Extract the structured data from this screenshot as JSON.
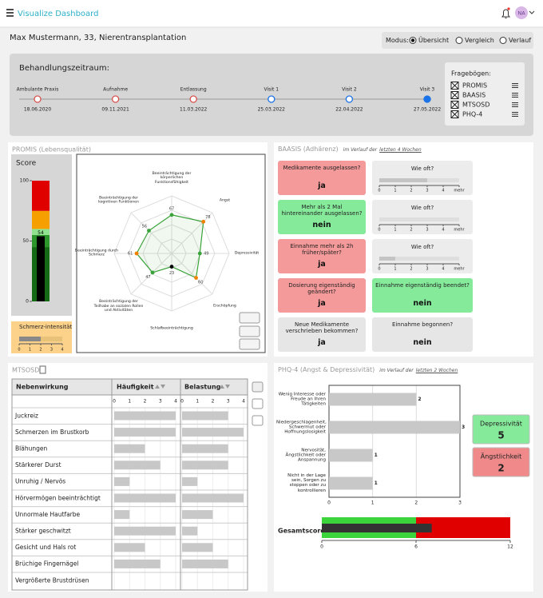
{
  "header": {
    "title": "Visualize Dashboard",
    "avatar": "NA"
  },
  "patient": "Max Mustermann, 33, Nierentransplantation",
  "mode": {
    "label": "Modus:",
    "options": [
      "Übersicht",
      "Vergleich",
      "Verlauf"
    ],
    "selected": 0
  },
  "timeline": {
    "title": "Behandlungszeitraum:",
    "current": 5,
    "events": [
      {
        "label": "Ambulante Praxis",
        "date": "18.06.2020",
        "color": "#d9534f"
      },
      {
        "label": "Aufnahme",
        "date": "09.11.2021",
        "color": "#d9534f"
      },
      {
        "label": "Entlassung",
        "date": "11.03.2022",
        "color": "#d9534f"
      },
      {
        "label": "Visit 1",
        "date": "25.03.2022",
        "color": "#1a73e8"
      },
      {
        "label": "Visit 2",
        "date": "22.04.2022",
        "color": "#1a73e8"
      },
      {
        "label": "Visit 3",
        "date": "27.05.2022",
        "color": "#1a73e8"
      }
    ]
  },
  "questionnaires": {
    "title": "Fragebögen:",
    "items": [
      "PROMIS",
      "BAASIS",
      "MTSOSD",
      "PHQ-4"
    ]
  },
  "promis": {
    "title": "PROMIS (Lebensqualität)",
    "score": {
      "label": "Score",
      "value": 54,
      "ylim": [
        0,
        100
      ],
      "yticks": [
        0,
        50,
        100
      ],
      "bands": [
        {
          "from": 0,
          "to": 45,
          "color": "#156b15"
        },
        {
          "from": 45,
          "to": 55,
          "color": "#2c962c"
        },
        {
          "from": 55,
          "to": 60,
          "color": "#8fe38f"
        },
        {
          "from": 60,
          "to": 75,
          "color": "#f5a000"
        },
        {
          "from": 75,
          "to": 100,
          "color": "#e00000"
        }
      ]
    },
    "pain": {
      "label": "Schmerz-intensität",
      "value": 2,
      "xlim": [
        0,
        4
      ],
      "xticks": [
        0,
        1,
        2,
        3,
        4
      ]
    },
    "radar": {
      "type": "radar",
      "rlim": [
        0,
        100
      ],
      "color": "#3aa23a",
      "axes": [
        {
          "label": "Beeinträchtigung der körperlichen Funktionsfähigkeit",
          "value": 67,
          "color": "#3aa23a"
        },
        {
          "label": "Angst",
          "value": 78,
          "color": "#f08000"
        },
        {
          "label": "Depressivität",
          "value": 49,
          "color": "#3aa23a"
        },
        {
          "label": "Erschöpfung",
          "value": 60,
          "color": "#f08000"
        },
        {
          "label": "Schlafbeeinträchtigung",
          "value": 23,
          "color": "#000000"
        },
        {
          "label": "Beeinträchtigung der Teilhabe an sozialen Rollen und Aktivitäten",
          "value": 47,
          "color": "#3aa23a"
        },
        {
          "label": "Beeinträchtigung durch Schmerz",
          "value": 61,
          "color": "#f08000"
        },
        {
          "label": "Beeinträchtigung der kognitiven Funktionen",
          "value": 56,
          "color": "#3aa23a"
        }
      ]
    }
  },
  "baasis": {
    "title": "BAASIS (Adhärenz)",
    "note": "im Verlauf der",
    "link": "letzten 4 Wochen",
    "freq": {
      "label": "Wie oft?",
      "xlim": [
        0,
        5
      ],
      "xticks": [
        0,
        1,
        2,
        3,
        4,
        {
          "value": 5,
          "label": "mehr"
        }
      ]
    },
    "rows": [
      {
        "left": {
          "question": "Medikamente ausgelassen?",
          "answer": "ja",
          "color": "#f59a9a"
        },
        "right": {
          "frequency": 3
        }
      },
      {
        "left": {
          "question": "Mehr als 2 Mal hintereinander ausgelassen?",
          "answer": "nein",
          "color": "#86ea9b"
        },
        "right": {
          "frequency": null
        }
      },
      {
        "left": {
          "question": "Einnahme mehr als 2h früher/später?",
          "answer": "ja",
          "color": "#f59a9a"
        },
        "right": {
          "frequency": 1
        }
      },
      {
        "left": {
          "question": "Dosierung eigenständig geändert?",
          "answer": "ja",
          "color": "#f59a9a"
        },
        "right": {
          "question": "Einnahme eigenständig beendet?",
          "answer": "nein",
          "color": "#86ea9b"
        }
      },
      {
        "left": {
          "question": "Neue Medikamente verschrieben bekommen?",
          "answer": "ja",
          "color": "#e6e6e6"
        },
        "right": {
          "question": "Einnahme begonnen?",
          "answer": "nein",
          "color": "#e6e6e6"
        }
      }
    ]
  },
  "mtsosd": {
    "title": "MTSOSD",
    "columns": [
      "Nebenwirkung",
      "Häufigkeit",
      "Belastung"
    ],
    "xlim": [
      0,
      4
    ],
    "xticks": [
      0,
      1,
      2,
      3,
      4
    ],
    "color": "#c8c8c8",
    "rows": [
      {
        "label": "Juckreiz",
        "frequency": 4,
        "burden": 3
      },
      {
        "label": "Schmerzen im Brustkorb",
        "frequency": 4,
        "burden": 4
      },
      {
        "label": "Blähungen",
        "frequency": 2,
        "burden": 3
      },
      {
        "label": "Stärkerer Durst",
        "frequency": 3,
        "burden": 3
      },
      {
        "label": "Unruhig / Nervös",
        "frequency": 1,
        "burden": 1
      },
      {
        "label": "Hörvermögen beeinträchtigt",
        "frequency": 4,
        "burden": 4
      },
      {
        "label": "Unnormale Hautfarbe",
        "frequency": 1,
        "burden": 2
      },
      {
        "label": "Stärker geschwitzt",
        "frequency": 4,
        "burden": 1
      },
      {
        "label": "Gesicht und Hals rot",
        "frequency": 2,
        "burden": 2
      },
      {
        "label": "Brüchige Fingernägel",
        "frequency": 3,
        "burden": 3
      },
      {
        "label": "Vergrößerte Brustdrüsen",
        "frequency": null,
        "burden": null
      }
    ]
  },
  "phq4": {
    "title": "PHQ-4 (Angst & Depressivität)",
    "note": "im Verlauf der",
    "link": "letzten 2 Wochen",
    "chart": {
      "type": "bar",
      "categories": [
        "Wenig Interesse oder Freude an Ihren Tätigkeiten",
        "Niedergeschlagenheit, Schwermut oder Hoffnungslosigkeit",
        "Nervosität, Ängstlichkeit oder Anspannung",
        "Nicht in der Lage sein, Sorgen zu stoppen oder zu kontrollieren"
      ],
      "values": [
        2,
        3,
        1,
        1
      ],
      "xlim": [
        0,
        3
      ],
      "xticks": [
        0,
        1,
        2,
        3
      ],
      "color": "#c8c8c8",
      "grid": true
    },
    "scores": [
      {
        "label": "Depressivität",
        "value": 5,
        "color": "#86ea9b"
      },
      {
        "label": "Ängstlichkeit",
        "value": 2,
        "color": "#f08a8a"
      }
    ],
    "total": {
      "label": "Gesamtscore",
      "value": 7,
      "xlim": [
        0,
        12
      ],
      "xticks": [
        0,
        6,
        12
      ],
      "color": "#333333",
      "bands": [
        {
          "from": 0,
          "to": 6,
          "color": "#3bd43b"
        },
        {
          "from": 6,
          "to": 12,
          "color": "#e00000"
        }
      ]
    }
  }
}
